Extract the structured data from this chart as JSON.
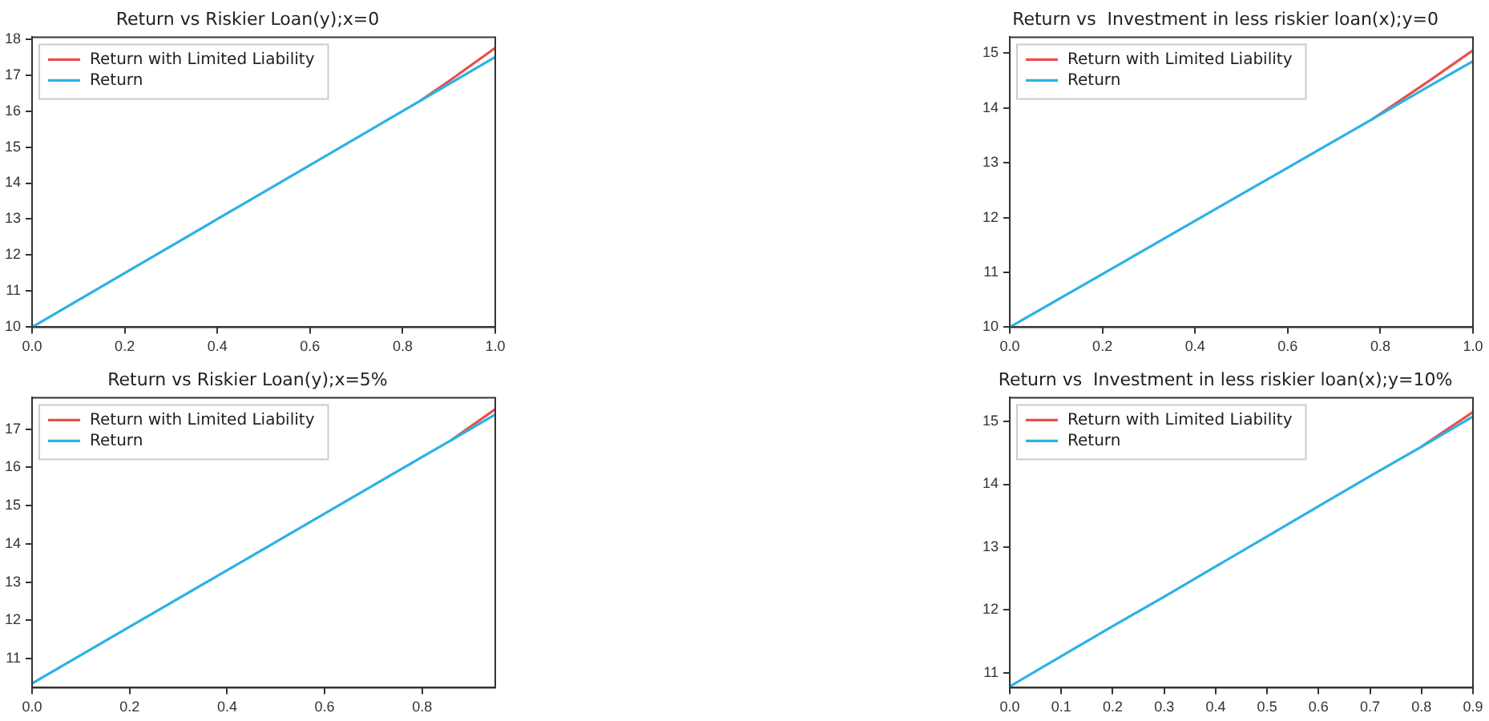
{
  "chart_data": [
    {
      "type": "line",
      "title": "Return vs Riskier Loan(y);x=0",
      "x": [
        0,
        0.2,
        0.4,
        0.6,
        0.8,
        0.84,
        0.9,
        1.0
      ],
      "series": [
        {
          "name": "Return with Limited Liability",
          "color": "#e8504c",
          "values": [
            null,
            null,
            null,
            null,
            null,
            16.3,
            16.83,
            17.75
          ]
        },
        {
          "name": "Return",
          "color": "#2cb2e4",
          "values": [
            10,
            11.5,
            13,
            14.5,
            16,
            16.3,
            16.75,
            17.5
          ]
        }
      ],
      "xlim": [
        0,
        1
      ],
      "xticks": [
        {
          "value": 0,
          "label": "0.0"
        },
        {
          "value": 0.2,
          "label": "0.2"
        },
        {
          "value": 0.4,
          "label": "0.4"
        },
        {
          "value": 0.6,
          "label": "0.6"
        },
        {
          "value": 0.8,
          "label": "0.8"
        },
        {
          "value": 1,
          "label": "1.0"
        }
      ],
      "ylim": [
        10,
        18.05
      ],
      "yticks": [
        10,
        11,
        12,
        13,
        14,
        15,
        16,
        17,
        18
      ],
      "grid": false,
      "legend": "top left",
      "marker": "none",
      "line_style": "solid"
    },
    {
      "type": "line",
      "title": "Return vs  Investment in less riskier loan(x);y=0",
      "x": [
        0,
        0.2,
        0.4,
        0.6,
        0.78,
        0.9,
        1.0
      ],
      "series": [
        {
          "name": "Return with Limited Liability",
          "color": "#e8504c",
          "values": [
            null,
            null,
            null,
            null,
            13.78,
            14.46,
            15.05
          ]
        },
        {
          "name": "Return",
          "color": "#2cb2e4",
          "values": [
            10,
            10.97,
            11.94,
            12.91,
            13.78,
            14.37,
            14.85
          ]
        }
      ],
      "xlim": [
        0,
        1
      ],
      "xticks": [
        {
          "value": 0,
          "label": "0.0"
        },
        {
          "value": 0.2,
          "label": "0.2"
        },
        {
          "value": 0.4,
          "label": "0.4"
        },
        {
          "value": 0.6,
          "label": "0.6"
        },
        {
          "value": 0.8,
          "label": "0.8"
        },
        {
          "value": 1,
          "label": "1.0"
        }
      ],
      "ylim": [
        10,
        15.29
      ],
      "yticks": [
        10,
        11,
        12,
        13,
        14,
        15
      ],
      "grid": false,
      "legend": "top left",
      "marker": "none",
      "line_style": "solid"
    },
    {
      "type": "line",
      "title": "Return vs Riskier Loan(y);x=5%",
      "x": [
        0,
        0.2,
        0.4,
        0.6,
        0.8,
        0.86,
        0.95
      ],
      "series": [
        {
          "name": "Return with Limited Liability",
          "color": "#e8504c",
          "values": [
            null,
            null,
            null,
            null,
            null,
            16.71,
            17.52
          ]
        },
        {
          "name": "Return",
          "color": "#2cb2e4",
          "values": [
            10.35,
            11.83,
            13.31,
            14.79,
            16.27,
            16.71,
            17.38
          ]
        }
      ],
      "xlim": [
        0,
        0.95
      ],
      "xticks": [
        {
          "value": 0,
          "label": "0.0"
        },
        {
          "value": 0.2,
          "label": "0.2"
        },
        {
          "value": 0.4,
          "label": "0.4"
        },
        {
          "value": 0.6,
          "label": "0.6"
        },
        {
          "value": 0.8,
          "label": "0.8"
        }
      ],
      "ylim": [
        10.24,
        17.82
      ],
      "yticks": [
        11,
        12,
        13,
        14,
        15,
        16,
        17
      ],
      "grid": false,
      "legend": "top left",
      "marker": "none",
      "line_style": "solid"
    },
    {
      "type": "line",
      "title": "Return vs  Investment in less riskier loan(x);y=10%",
      "x": [
        0,
        0.1,
        0.2,
        0.3,
        0.4,
        0.5,
        0.6,
        0.7,
        0.8,
        0.9
      ],
      "series": [
        {
          "name": "Return with Limited Liability",
          "color": "#e8504c",
          "values": [
            null,
            null,
            null,
            null,
            null,
            null,
            null,
            null,
            14.6,
            15.15
          ]
        },
        {
          "name": "Return",
          "color": "#2cb2e4",
          "values": [
            10.78,
            11.26,
            11.74,
            12.21,
            12.69,
            13.17,
            13.65,
            14.13,
            14.6,
            15.08
          ]
        }
      ],
      "xlim": [
        0,
        0.9
      ],
      "xticks": [
        {
          "value": 0,
          "label": "0.0"
        },
        {
          "value": 0.1,
          "label": "0.1"
        },
        {
          "value": 0.2,
          "label": "0.2"
        },
        {
          "value": 0.3,
          "label": "0.3"
        },
        {
          "value": 0.4,
          "label": "0.4"
        },
        {
          "value": 0.5,
          "label": "0.5"
        },
        {
          "value": 0.6,
          "label": "0.6"
        },
        {
          "value": 0.7,
          "label": "0.7"
        },
        {
          "value": 0.8,
          "label": "0.8"
        },
        {
          "value": 0.9,
          "label": "0.9"
        }
      ],
      "ylim": [
        10.76,
        15.38
      ],
      "yticks": [
        11,
        12,
        13,
        14,
        15
      ],
      "grid": false,
      "legend": "top left",
      "marker": "none",
      "line_style": "solid"
    }
  ]
}
